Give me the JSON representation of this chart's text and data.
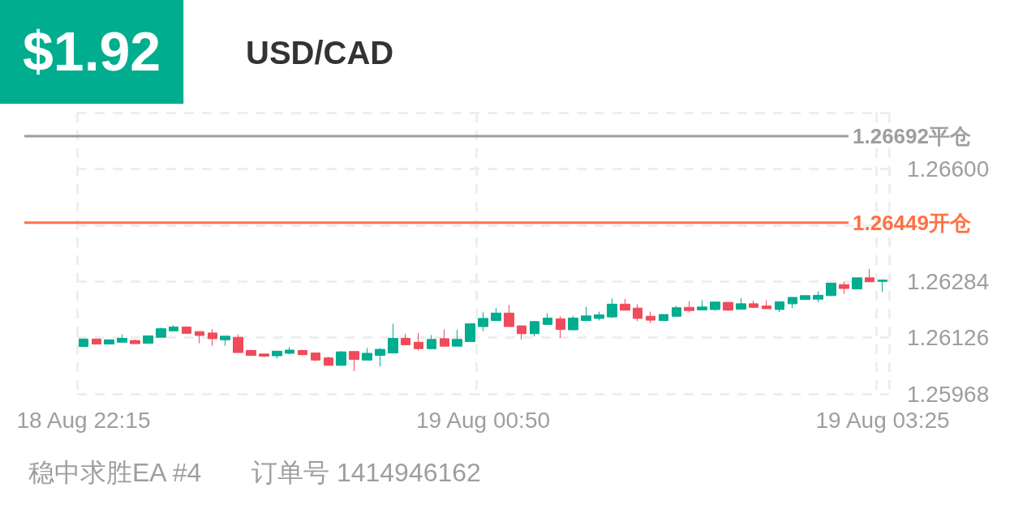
{
  "chart_data": {
    "type": "candlestick",
    "title": "$1.92",
    "subtitle": "USD/CAD",
    "categories": [
      "18 Aug 22:15",
      null,
      null,
      null,
      null,
      null,
      null,
      null,
      null,
      null,
      null,
      null,
      null,
      null,
      null,
      null,
      null,
      null,
      null,
      null,
      null,
      null,
      null,
      null,
      null,
      null,
      null,
      null,
      null,
      null,
      null,
      "19 Aug 00:50",
      null,
      null,
      null,
      null,
      null,
      null,
      null,
      null,
      null,
      null,
      null,
      null,
      null,
      null,
      null,
      null,
      null,
      null,
      null,
      null,
      null,
      null,
      null,
      null,
      null,
      null,
      null,
      null,
      null,
      null,
      "19 Aug 03:25"
    ],
    "ohlc": [
      [
        1.26101,
        1.26122,
        1.26101,
        1.26122
      ],
      [
        1.26122,
        1.26122,
        1.26108,
        1.26108
      ],
      [
        1.26108,
        1.2612,
        1.26108,
        1.2612
      ],
      [
        1.26113,
        1.26135,
        1.26112,
        1.26124
      ],
      [
        1.26118,
        1.2612,
        1.26109,
        1.26109
      ],
      [
        1.2611,
        1.26131,
        1.2611,
        1.26131
      ],
      [
        1.26127,
        1.26154,
        1.26127,
        1.26151
      ],
      [
        1.26145,
        1.26161,
        1.26145,
        1.26156
      ],
      [
        1.26156,
        1.26156,
        1.26138,
        1.26138
      ],
      [
        1.26143,
        1.26143,
        1.2611,
        1.26132
      ],
      [
        1.26139,
        1.2615,
        1.26103,
        1.26123
      ],
      [
        1.2612,
        1.2613,
        1.26103,
        1.2613
      ],
      [
        1.26127,
        1.26135,
        1.26084,
        1.26084
      ],
      [
        1.2609,
        1.26092,
        1.26076,
        1.26076
      ],
      [
        1.2608,
        1.2608,
        1.26071,
        1.26074
      ],
      [
        1.26075,
        1.26088,
        1.26067,
        1.26088
      ],
      [
        1.26082,
        1.26099,
        1.26079,
        1.26091
      ],
      [
        1.2609,
        1.26092,
        1.26076,
        1.26078
      ],
      [
        1.26083,
        1.26083,
        1.2606,
        1.26063
      ],
      [
        1.26069,
        1.26073,
        1.26048,
        1.26048
      ],
      [
        1.26048,
        1.26088,
        1.26048,
        1.26086
      ],
      [
        1.26087,
        1.26087,
        1.26032,
        1.26065
      ],
      [
        1.26063,
        1.26097,
        1.26063,
        1.26082
      ],
      [
        1.26076,
        1.26097,
        1.26045,
        1.26093
      ],
      [
        1.26083,
        1.26165,
        1.26083,
        1.26124
      ],
      [
        1.26124,
        1.26137,
        1.26105,
        1.26106
      ],
      [
        1.26113,
        1.26139,
        1.2609,
        1.26095
      ],
      [
        1.26095,
        1.26133,
        1.26095,
        1.26121
      ],
      [
        1.26123,
        1.26149,
        1.26102,
        1.26102
      ],
      [
        1.26102,
        1.26148,
        1.26102,
        1.26121
      ],
      [
        1.26115,
        1.26165,
        1.26115,
        1.26165
      ],
      [
        1.26157,
        1.26197,
        1.26144,
        1.2618
      ],
      [
        1.26174,
        1.26209,
        1.26174,
        1.26195
      ],
      [
        1.26195,
        1.26218,
        1.26157,
        1.26157
      ],
      [
        1.26159,
        1.26159,
        1.26121,
        1.26137
      ],
      [
        1.26137,
        1.26172,
        1.26129,
        1.26171
      ],
      [
        1.26163,
        1.26195,
        1.26163,
        1.26181
      ],
      [
        1.26179,
        1.26186,
        1.26125,
        1.26149
      ],
      [
        1.26148,
        1.26187,
        1.26146,
        1.26181
      ],
      [
        1.26174,
        1.26212,
        1.26174,
        1.26187
      ],
      [
        1.2618,
        1.26199,
        1.26174,
        1.2619
      ],
      [
        1.26184,
        1.26236,
        1.26181,
        1.2622
      ],
      [
        1.2622,
        1.26235,
        1.26203,
        1.26203
      ],
      [
        1.26209,
        1.2622,
        1.26172,
        1.2618
      ],
      [
        1.26186,
        1.26199,
        1.26167,
        1.26175
      ],
      [
        1.26174,
        1.26191,
        1.26173,
        1.26191
      ],
      [
        1.26186,
        1.26215,
        1.26184,
        1.2621
      ],
      [
        1.26211,
        1.26228,
        1.26197,
        1.26202
      ],
      [
        1.26204,
        1.26231,
        1.26203,
        1.26212
      ],
      [
        1.26205,
        1.26226,
        1.26201,
        1.26226
      ],
      [
        1.26225,
        1.26225,
        1.26201,
        1.26203
      ],
      [
        1.26206,
        1.26237,
        1.26206,
        1.26221
      ],
      [
        1.26221,
        1.2623,
        1.26209,
        1.26211
      ],
      [
        1.26215,
        1.26231,
        1.26207,
        1.26207
      ],
      [
        1.26205,
        1.26227,
        1.26198,
        1.26227
      ],
      [
        1.26221,
        1.26239,
        1.26209,
        1.26239
      ],
      [
        1.26233,
        1.26244,
        1.26233,
        1.26244
      ],
      [
        1.26234,
        1.26256,
        1.26226,
        1.26245
      ],
      [
        1.26244,
        1.26279,
        1.26243,
        1.26279
      ],
      [
        1.26275,
        1.26283,
        1.26249,
        1.26264
      ],
      [
        1.26263,
        1.26294,
        1.26263,
        1.26294
      ],
      [
        1.26294,
        1.26319,
        1.26283,
        1.26283
      ],
      [
        1.26284,
        1.26288,
        1.26254,
        1.26288
      ]
    ],
    "colors": [
      "#00ad8f",
      "#ef4b5b",
      "#00ad8f",
      "#00ad8f",
      "#ef4b5b",
      "#00ad8f",
      "#00ad8f",
      "#00ad8f",
      "#ef4b5b",
      "#ef4b5b",
      "#ef4b5b",
      "#00ad8f",
      "#ef4b5b",
      "#ef4b5b",
      "#ef4b5b",
      "#00ad8f",
      "#00ad8f",
      "#ef4b5b",
      "#ef4b5b",
      "#ef4b5b",
      "#00ad8f",
      "#ef4b5b",
      "#00ad8f",
      "#00ad8f",
      "#00ad8f",
      "#ef4b5b",
      "#ef4b5b",
      "#00ad8f",
      "#ef4b5b",
      "#00ad8f",
      "#00ad8f",
      "#00ad8f",
      "#00ad8f",
      "#ef4b5b",
      "#ef4b5b",
      "#00ad8f",
      "#00ad8f",
      "#ef4b5b",
      "#00ad8f",
      "#00ad8f",
      "#00ad8f",
      "#00ad8f",
      "#ef4b5b",
      "#ef4b5b",
      "#ef4b5b",
      "#00ad8f",
      "#00ad8f",
      "#ef4b5b",
      "#00ad8f",
      "#00ad8f",
      "#ef4b5b",
      "#00ad8f",
      "#ef4b5b",
      "#ef4b5b",
      "#00ad8f",
      "#00ad8f",
      "#00ad8f",
      "#00ad8f",
      "#00ad8f",
      "#ef4b5b",
      "#00ad8f",
      "#ef4b5b",
      "#00ad8f"
    ],
    "ylim": [
      1.25968,
      1.26758
    ],
    "yticks": [
      1.25968,
      1.26126,
      1.26284,
      {
        "value": 1.26442,
        "label": null
      },
      {
        "value": 1.266,
        "label": "1.26600"
      },
      {
        "value": 1.26758,
        "label": null
      }
    ],
    "ref_lines": [
      {
        "axis": "y",
        "value": 1.26692,
        "label": "1.26692平仓",
        "color": "#9e9e9e"
      },
      {
        "axis": "y",
        "value": 1.26449,
        "label": "1.26449开仓",
        "color": "#ff7043"
      }
    ],
    "annotations": [
      "稳中求胜EA #4",
      "订单号 1414946162"
    ],
    "grid": true
  }
}
